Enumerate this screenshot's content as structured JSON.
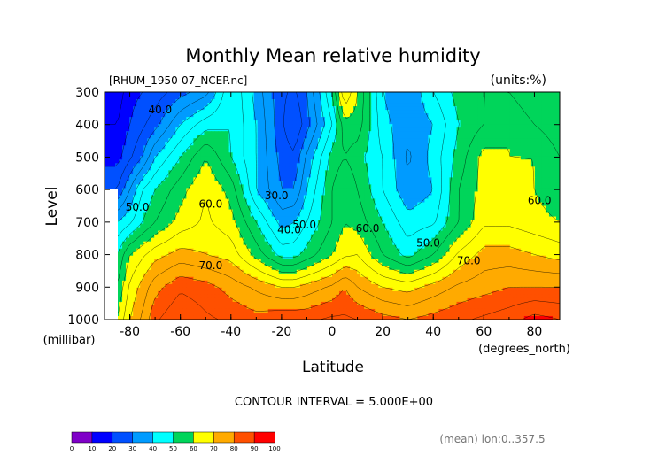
{
  "chart_data": {
    "type": "heatmap",
    "title": "Monthly Mean relative humidity",
    "file_label": "[RHUM_1950-07_NCEP.nc]",
    "units_label": "(units:%)",
    "xlabel": "Latitude",
    "x_unit_label": "(degrees_north)",
    "ylabel": "Level",
    "y_unit_label": "(millibar)",
    "xlim": [
      -90,
      90
    ],
    "ylim": [
      1000,
      300
    ],
    "x_ticks": [
      -80,
      -60,
      -40,
      -20,
      0,
      20,
      40,
      60,
      80
    ],
    "y_ticks": [
      300,
      400,
      500,
      600,
      700,
      800,
      900,
      1000
    ],
    "contour_interval_text": "CONTOUR INTERVAL = 5.000E+00",
    "footer_text": "(mean) lon:0..357.5",
    "levels": [
      0,
      10,
      20,
      30,
      40,
      50,
      60,
      70,
      80,
      90,
      100
    ],
    "level_colors": [
      "#7f00c8",
      "#0000ff",
      "#0050ff",
      "#009bff",
      "#00ffff",
      "#00d55a",
      "#ffff00",
      "#ffaa00",
      "#ff5000",
      "#ff0000"
    ],
    "x": [
      -85,
      -80,
      -75,
      -70,
      -60,
      -50,
      -40,
      -30,
      -20,
      -15,
      -10,
      0,
      5,
      10,
      20,
      30,
      40,
      50,
      60,
      70,
      80,
      90
    ],
    "y": [
      300,
      400,
      500,
      600,
      700,
      800,
      900,
      1000
    ],
    "z": [
      [
        12,
        18,
        20,
        22,
        28,
        33,
        50,
        38,
        26,
        24,
        30,
        50,
        70,
        60,
        40,
        35,
        45,
        52,
        55,
        55,
        50,
        52
      ],
      [
        15,
        20,
        24,
        28,
        40,
        48,
        50,
        40,
        26,
        20,
        28,
        45,
        58,
        58,
        42,
        36,
        40,
        50,
        55,
        60,
        55,
        52
      ],
      [
        18,
        24,
        30,
        40,
        50,
        60,
        50,
        40,
        28,
        26,
        36,
        52,
        55,
        52,
        45,
        34,
        42,
        52,
        62,
        60,
        60,
        55
      ],
      [
        25,
        35,
        45,
        50,
        58,
        65,
        58,
        40,
        30,
        30,
        40,
        55,
        60,
        55,
        45,
        36,
        40,
        55,
        62,
        62,
        60,
        56
      ],
      [
        40,
        44,
        50,
        55,
        62,
        66,
        62,
        50,
        38,
        40,
        45,
        55,
        60,
        58,
        50,
        42,
        44,
        55,
        64,
        64,
        62,
        60
      ],
      [
        50,
        60,
        64,
        68,
        72,
        70,
        68,
        58,
        48,
        48,
        52,
        60,
        64,
        65,
        55,
        48,
        55,
        66,
        72,
        72,
        70,
        68
      ],
      [
        55,
        66,
        72,
        78,
        84,
        82,
        78,
        74,
        70,
        70,
        72,
        76,
        80,
        75,
        70,
        68,
        72,
        76,
        78,
        80,
        80,
        80
      ],
      [
        60,
        70,
        76,
        84,
        90,
        86,
        84,
        82,
        84,
        84,
        84,
        86,
        86,
        85,
        82,
        80,
        82,
        84,
        86,
        88,
        92,
        90
      ]
    ],
    "contour_labels": [
      {
        "text": "40.0",
        "x": -68,
        "y": 365
      },
      {
        "text": "30.0",
        "x": -22,
        "y": 630
      },
      {
        "text": "40.0",
        "x": -17,
        "y": 735
      },
      {
        "text": "50.0",
        "x": -11,
        "y": 720
      },
      {
        "text": "50.0",
        "x": -77,
        "y": 665
      },
      {
        "text": "60.0",
        "x": -48,
        "y": 655
      },
      {
        "text": "60.0",
        "x": 14,
        "y": 730
      },
      {
        "text": "50.0",
        "x": 38,
        "y": 775
      },
      {
        "text": "70.0",
        "x": -48,
        "y": 845
      },
      {
        "text": "70.0",
        "x": 54,
        "y": 830
      },
      {
        "text": "60.0",
        "x": 82,
        "y": 645
      }
    ]
  }
}
